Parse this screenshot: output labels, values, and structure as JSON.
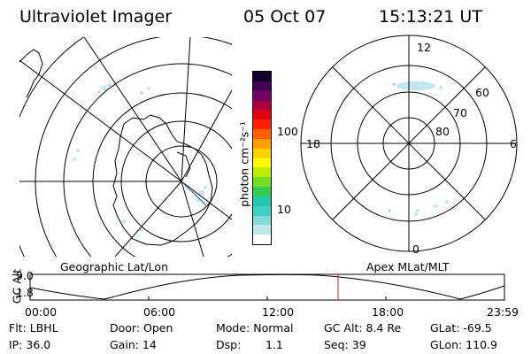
{
  "header": {
    "instrument": "Ultraviolet Imager",
    "date": "05 Oct 07",
    "time": "15:13:21 UT"
  },
  "colorbar": {
    "label": "photon cm⁻²s⁻¹",
    "tick_100": "100",
    "tick_10": "10",
    "colors": [
      "#ffffff",
      "#bfe9ee",
      "#7fdcd8",
      "#3fd0c8",
      "#22c8a8",
      "#33cc55",
      "#77dd22",
      "#bbee00",
      "#ffff00",
      "#ffd000",
      "#ffa000",
      "#ff6000",
      "#ff2000",
      "#dd0011",
      "#aa0044",
      "#770066",
      "#440055",
      "#11002a"
    ]
  },
  "right_map": {
    "mlt_12": "12",
    "mlt_6": "6",
    "mlt_18": "18",
    "mlt_0": "0",
    "lat_60": "60",
    "lat_70": "70",
    "lat_80": "80"
  },
  "map_labels": {
    "left": "Geographic Lat/Lon",
    "right": "Apex MLat/MLT"
  },
  "altitude_plot": {
    "ylabel": "GC Alt",
    "ytick_top": "9.0",
    "ytick_bottom": "1.8",
    "xticks": [
      "00:00",
      "06:00",
      "12:00",
      "18:00",
      "23:59"
    ],
    "marker_time": "15:13",
    "marker_color": "#dd2222"
  },
  "info": {
    "row1": {
      "filter": "Flt: LBHL",
      "door": "Door: Open",
      "mode": "Mode: Normal",
      "gc_alt": "GC Alt: 8.4 Re",
      "glat": "GLat: -69.5"
    },
    "row2": {
      "ip": "IP: 36.0",
      "gain": "Gain: 14",
      "dsp_label": "Dsp:",
      "dsp_value": "1.1",
      "seq": "Seq: 39",
      "glon": "GLon: 110.9"
    }
  }
}
